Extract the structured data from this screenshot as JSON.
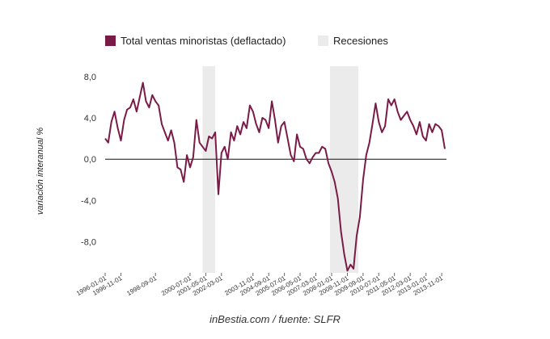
{
  "colors": {
    "series": "#7a1b47",
    "recession": "#ebebeb",
    "zero_line": "#111111"
  },
  "legend": {
    "series_label": "Total ventas minoristas (deflactado)",
    "recession_label": "Recesiones",
    "placement": "top"
  },
  "source": "inBestia.com / fuente: SLFR",
  "chart_data": {
    "type": "line",
    "title": "",
    "xlabel": "",
    "ylabel": "variación interanual %",
    "xlim": [
      "1996-01-01",
      "2014-02-01"
    ],
    "ylim": [
      -11,
      9
    ],
    "y_ticks": [
      8,
      4,
      0,
      -4,
      -8
    ],
    "y_tick_labels": [
      "8,0",
      "4,0",
      "0,0",
      "-4,0",
      "-8,0"
    ],
    "x_tick_labels": [
      "1996-01-01",
      "1996-11-01",
      "1998-09-01",
      "2000-07-01",
      "2001-05-01",
      "2002-03-01",
      "2003-11-01",
      "2004-09-01",
      "2005-07-01",
      "2006-05-01",
      "2007-03-01",
      "2008-01-01",
      "2008-11-01",
      "2009-09-01",
      "2010-07-01",
      "2011-05-01",
      "2012-03-01",
      "2013-01-01",
      "2013-11-01"
    ],
    "grid": false,
    "recessions": [
      [
        "2001-03-01",
        "2001-11-01"
      ],
      [
        "2007-12-01",
        "2009-06-01"
      ]
    ],
    "series": [
      {
        "name": "Total ventas minoristas (deflactado)",
        "x": [
          "1996-01-01",
          "1996-03-01",
          "1996-05-01",
          "1996-07-01",
          "1996-09-01",
          "1996-11-01",
          "1997-01-01",
          "1997-03-01",
          "1997-05-01",
          "1997-07-01",
          "1997-09-01",
          "1997-11-01",
          "1998-01-01",
          "1998-03-01",
          "1998-05-01",
          "1998-07-01",
          "1998-09-01",
          "1998-11-01",
          "1999-01-01",
          "1999-03-01",
          "1999-05-01",
          "1999-07-01",
          "1999-09-01",
          "1999-11-01",
          "2000-01-01",
          "2000-03-01",
          "2000-05-01",
          "2000-07-01",
          "2000-09-01",
          "2000-11-01",
          "2001-01-01",
          "2001-03-01",
          "2001-05-01",
          "2001-07-01",
          "2001-09-01",
          "2001-11-01",
          "2002-01-01",
          "2002-03-01",
          "2002-05-01",
          "2002-07-01",
          "2002-09-01",
          "2002-11-01",
          "2003-01-01",
          "2003-03-01",
          "2003-05-01",
          "2003-07-01",
          "2003-09-01",
          "2003-11-01",
          "2004-01-01",
          "2004-03-01",
          "2004-05-01",
          "2004-07-01",
          "2004-09-01",
          "2004-11-01",
          "2005-01-01",
          "2005-03-01",
          "2005-05-01",
          "2005-07-01",
          "2005-09-01",
          "2005-11-01",
          "2006-01-01",
          "2006-03-01",
          "2006-05-01",
          "2006-07-01",
          "2006-09-01",
          "2006-11-01",
          "2007-01-01",
          "2007-03-01",
          "2007-05-01",
          "2007-07-01",
          "2007-09-01",
          "2007-11-01",
          "2008-01-01",
          "2008-03-01",
          "2008-05-01",
          "2008-07-01",
          "2008-09-01",
          "2008-11-01",
          "2009-01-01",
          "2009-03-01",
          "2009-05-01",
          "2009-07-01",
          "2009-09-01",
          "2009-11-01",
          "2010-01-01",
          "2010-03-01",
          "2010-05-01",
          "2010-07-01",
          "2010-09-01",
          "2010-11-01",
          "2011-01-01",
          "2011-03-01",
          "2011-05-01",
          "2011-07-01",
          "2011-09-01",
          "2011-11-01",
          "2012-01-01",
          "2012-03-01",
          "2012-05-01",
          "2012-07-01",
          "2012-09-01",
          "2012-11-01",
          "2013-01-01",
          "2013-03-01",
          "2013-05-01",
          "2013-07-01",
          "2013-09-01",
          "2013-11-01",
          "2014-01-01"
        ],
        "values": [
          2.0,
          1.6,
          3.6,
          4.6,
          3.0,
          1.8,
          3.8,
          4.8,
          5.0,
          5.8,
          4.6,
          6.0,
          7.4,
          5.6,
          5.0,
          6.2,
          5.6,
          5.2,
          3.4,
          2.6,
          1.8,
          2.8,
          1.6,
          -0.8,
          -1.0,
          -2.2,
          0.4,
          -0.8,
          0.2,
          3.8,
          1.6,
          1.2,
          0.8,
          2.2,
          2.0,
          2.6,
          -3.4,
          0.6,
          1.2,
          0.0,
          2.6,
          1.8,
          3.2,
          2.4,
          3.6,
          3.0,
          5.2,
          4.6,
          3.4,
          2.6,
          4.0,
          3.8,
          3.0,
          5.6,
          3.8,
          1.6,
          3.2,
          3.6,
          2.0,
          0.4,
          -0.2,
          2.4,
          1.2,
          1.0,
          0.0,
          -0.4,
          0.2,
          0.6,
          0.6,
          1.2,
          1.0,
          -0.4,
          -1.2,
          -2.2,
          -3.8,
          -7.0,
          -9.2,
          -10.8,
          -10.2,
          -10.6,
          -7.4,
          -5.6,
          -2.0,
          0.4,
          1.6,
          3.4,
          5.4,
          3.6,
          2.6,
          3.2,
          5.8,
          5.2,
          5.8,
          4.6,
          3.8,
          4.2,
          4.6,
          3.8,
          3.2,
          2.4,
          3.6,
          2.2,
          1.8,
          3.4,
          2.6,
          3.4,
          3.2,
          2.8,
          1.0
        ]
      }
    ]
  }
}
